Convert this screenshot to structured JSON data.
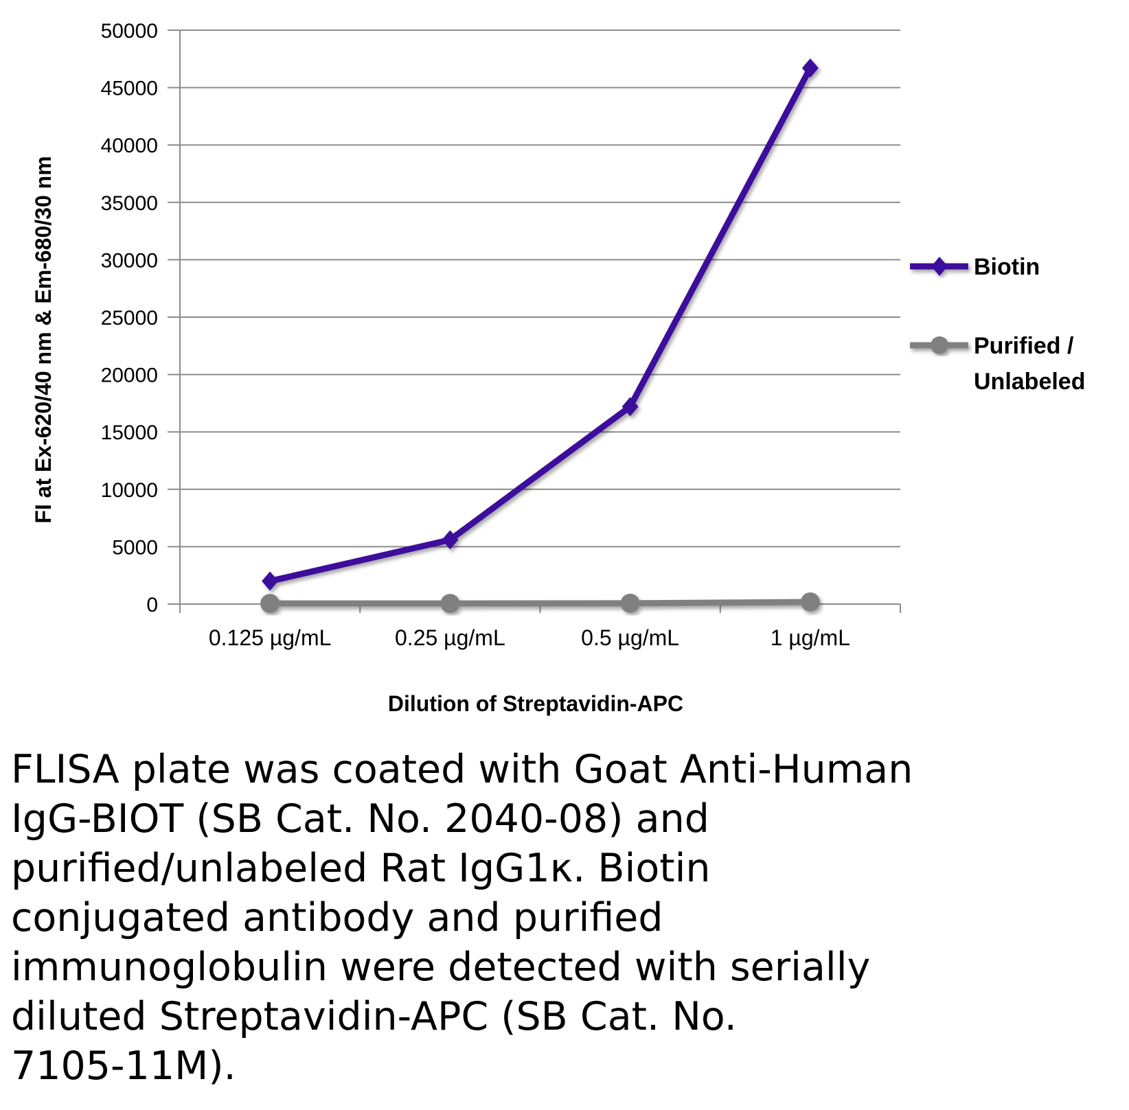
{
  "chart_data": {
    "type": "line",
    "categories": [
      "0.125 µg/mL",
      "0.25 µg/mL",
      "0.5 µg/mL",
      "1 µg/mL"
    ],
    "series": [
      {
        "name": "Biotin",
        "color": "#3d0d9c",
        "marker": "diamond",
        "values": [
          2000,
          5600,
          17200,
          46700
        ]
      },
      {
        "name": "Purified / Unlabeled",
        "color": "#808080",
        "marker": "circle",
        "values": [
          50,
          50,
          70,
          180
        ]
      }
    ],
    "xlabel": "Dilution of Streptavidin-APC",
    "ylabel": "FI at Ex-620/40 nm & Em-680/30 nm",
    "ylim": [
      0,
      50000
    ],
    "yticks": [
      "0",
      "5000",
      "10000",
      "15000",
      "20000",
      "25000",
      "30000",
      "35000",
      "40000",
      "45000",
      "50000"
    ],
    "grid": true,
    "legend_position": "right"
  },
  "caption": "FLISA plate was coated with Goat Anti-Human\nIgG-BIOT (SB Cat. No. 2040-08) and\npurified/unlabeled Rat IgG1κ.  Biotin\nconjugated antibody and purified\nimmunoglobulin were detected with serially\ndiluted Streptavidin-APC (SB Cat. No.\n7105-11M)."
}
